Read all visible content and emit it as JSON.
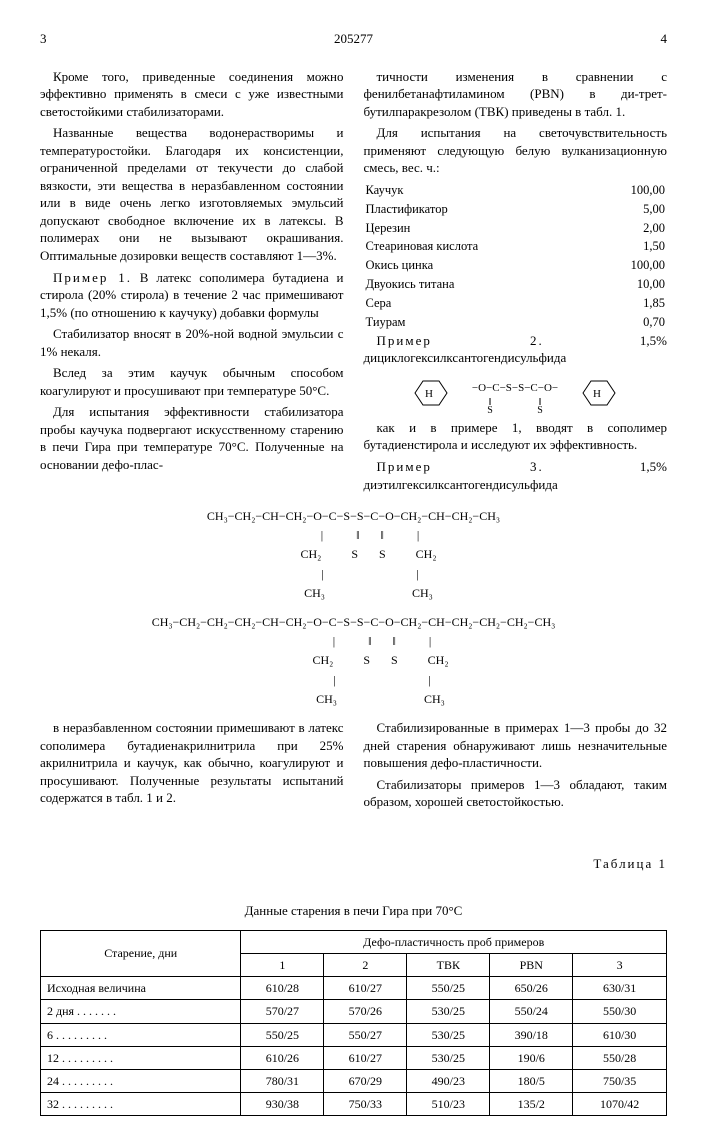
{
  "patent_number": "205277",
  "page_left": "3",
  "page_right": "4",
  "left_col": {
    "p1": "Кроме того, приведенные соединения можно эффективно применять в смеси с уже известными светостойкими стабилизаторами.",
    "p2": "Названные вещества водонерастворимы и температуростойки. Благодаря их консистенции, ограниченной пределами от текучести до слабой вязкости, эти вещества в неразбавленном состоянии или в виде очень легко изготовляемых эмульсий допускают свободное включение их в латексы. В полимерах они не вызывают окрашивания. Оптимальные дозировки веществ составляют 1—3%.",
    "p3_label": "Пример 1.",
    "p3": " В латекс сополимера бутадиена и стирола (20% стирола) в течение 2 час примешивают 1,5% (по отношению к каучуку) добавки формулы",
    "p4": "Стабилизатор вносят в 20%-ной водной эмульсии с 1% некаля.",
    "p5": "Вслед за этим каучук обычным способом коагулируют и просушивают при температуре 50°C.",
    "p6": "Для испытания эффективности стабилизатора пробы каучука подвергают искусственному старению в печи Гира при температуре 70°C. Полученные на основании дефо-плас-"
  },
  "right_col": {
    "p1": "тичности изменения в сравнении с фенилбетанафтиламином (PBN) в ди-трет-бутилпаракрезолом (ТВК) приведены в табл. 1.",
    "p2": "Для испытания на светочувствительность применяют следующую белую вулканизационную смесь, вес. ч.:",
    "composition": [
      {
        "name": "Каучук",
        "value": "100,00"
      },
      {
        "name": "Пластификатор",
        "value": "5,00"
      },
      {
        "name": "Церезин",
        "value": "2,00"
      },
      {
        "name": "Стеариновая кислота",
        "value": "1,50"
      },
      {
        "name": "Окись цинка",
        "value": "100,00"
      },
      {
        "name": "Двуокись титана",
        "value": "10,00"
      },
      {
        "name": "Сера",
        "value": "1,85"
      },
      {
        "name": "Тиурам",
        "value": "0,70"
      }
    ],
    "p3_label": "Пример 2.",
    "p3": " 1,5% дициклогексилксантогендисульфида",
    "p4": "как и в примере 1, вводят в сополимер бутадиенстирола и исследуют их эффективность.",
    "p5_label": "Пример 3.",
    "p5": " 1,5% диэтилгексилксантогендисульфида"
  },
  "formula1": "CH₃−CH₂−CH−CH₂−O−C−S−S−C−O−CH₂−CH−CH₂−CH₃\n           |           ‖       ‖           |\n          CH₂          S       S          CH₂\n           |                               |\n          CH₃                             CH₃",
  "formula2": "CH₃−CH₂−CH₂−CH₂−CH−CH₂−O−C−S−S−C−O−CH₂−CH−CH₂−CH₂−CH₂−CH₃\n                   |           ‖       ‖           |\n                  CH₂          S       S          CH₂\n                   |                               |\n                  CH₃                             CH₃",
  "bottom_left": {
    "p1": "в неразбавленном состоянии примешивают в латекс сополимера бутадиенакрилнитрила при 25% акрилнитрила и каучук, как обычно, коагулируют и просушивают. Полученные результаты испытаний содержатся в табл. 1 и 2."
  },
  "bottom_right": {
    "p1": "Стабилизированные в примерах 1—3 пробы до 32 дней старения обнаруживают лишь незначительные повышения дефо-пластичности.",
    "p2": "Стабилизаторы примеров 1—3 обладают, таким образом, хорошей светостойкостью."
  },
  "table_label": "Таблица 1",
  "table_title": "Данные старения в печи Гира при 70°C",
  "table": {
    "col_header_main": "Старение, дни",
    "supercol": "Дефо-пластичность проб примеров",
    "cols": [
      "1",
      "2",
      "ТВК",
      "PBN",
      "3"
    ],
    "rows": [
      {
        "label": "Исходная величина",
        "v": [
          "610/28",
          "610/27",
          "550/25",
          "650/26",
          "630/31"
        ]
      },
      {
        "label": "2 дня . . . . . . .",
        "v": [
          "570/27",
          "570/26",
          "530/25",
          "550/24",
          "550/30"
        ]
      },
      {
        "label": "6 . . . . . . . . .",
        "v": [
          "550/25",
          "550/27",
          "530/25",
          "390/18",
          "610/30"
        ]
      },
      {
        "label": "12 . . . . . . . . .",
        "v": [
          "610/26",
          "610/27",
          "530/25",
          "190/6",
          "550/28"
        ]
      },
      {
        "label": "24 . . . . . . . . .",
        "v": [
          "780/31",
          "670/29",
          "490/23",
          "180/5",
          "750/35"
        ]
      },
      {
        "label": "32 . . . . . . . . .",
        "v": [
          "930/38",
          "750/33",
          "510/23",
          "135/2",
          "1070/42"
        ]
      }
    ]
  }
}
